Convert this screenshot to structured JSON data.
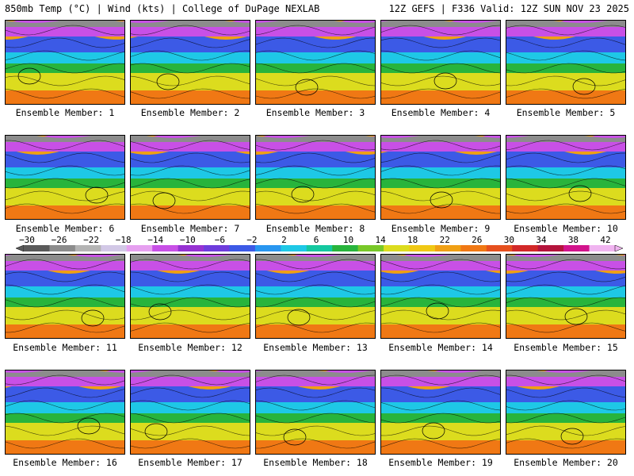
{
  "header": {
    "left": "850mb Temp (°C) | Wind (kts) | College of DuPage NEXLAB",
    "right": "12Z GEFS | F336 Valid: 12Z SUN NOV 23 2025"
  },
  "legend": {
    "ticks": [
      "−30",
      "−26",
      "−22",
      "−18",
      "−14",
      "−10",
      "−6",
      "−2",
      "2",
      "6",
      "10",
      "14",
      "18",
      "22",
      "26",
      "30",
      "34",
      "38",
      "42"
    ],
    "colors": [
      "#5a5a5a",
      "#8c8c8c",
      "#b4b4b4",
      "#d2c8e6",
      "#e6a0f0",
      "#c850e6",
      "#9632d2",
      "#6e3cdc",
      "#3c5ae6",
      "#2896f0",
      "#1ec8e6",
      "#14c8a0",
      "#28b43c",
      "#78c828",
      "#dcdc1e",
      "#f0c814",
      "#f0a014",
      "#f07814",
      "#e6501e",
      "#d22828",
      "#b4143c",
      "#d2148c",
      "#f0b4f0"
    ]
  },
  "members": [
    {
      "label": "Ensemble Member: 1"
    },
    {
      "label": "Ensemble Member: 2"
    },
    {
      "label": "Ensemble Member: 3"
    },
    {
      "label": "Ensemble Member: 4"
    },
    {
      "label": "Ensemble Member: 5"
    },
    {
      "label": "Ensemble Member: 6"
    },
    {
      "label": "Ensemble Member: 7"
    },
    {
      "label": "Ensemble Member: 8"
    },
    {
      "label": "Ensemble Member: 9"
    },
    {
      "label": "Ensemble Member: 10"
    },
    {
      "label": "Ensemble Member: 11"
    },
    {
      "label": "Ensemble Member: 12"
    },
    {
      "label": "Ensemble Member: 13"
    },
    {
      "label": "Ensemble Member: 14"
    },
    {
      "label": "Ensemble Member: 15"
    },
    {
      "label": "Ensemble Member: 16"
    },
    {
      "label": "Ensemble Member: 17"
    },
    {
      "label": "Ensemble Member: 18"
    },
    {
      "label": "Ensemble Member: 19"
    },
    {
      "label": "Ensemble Member: 20"
    }
  ]
}
